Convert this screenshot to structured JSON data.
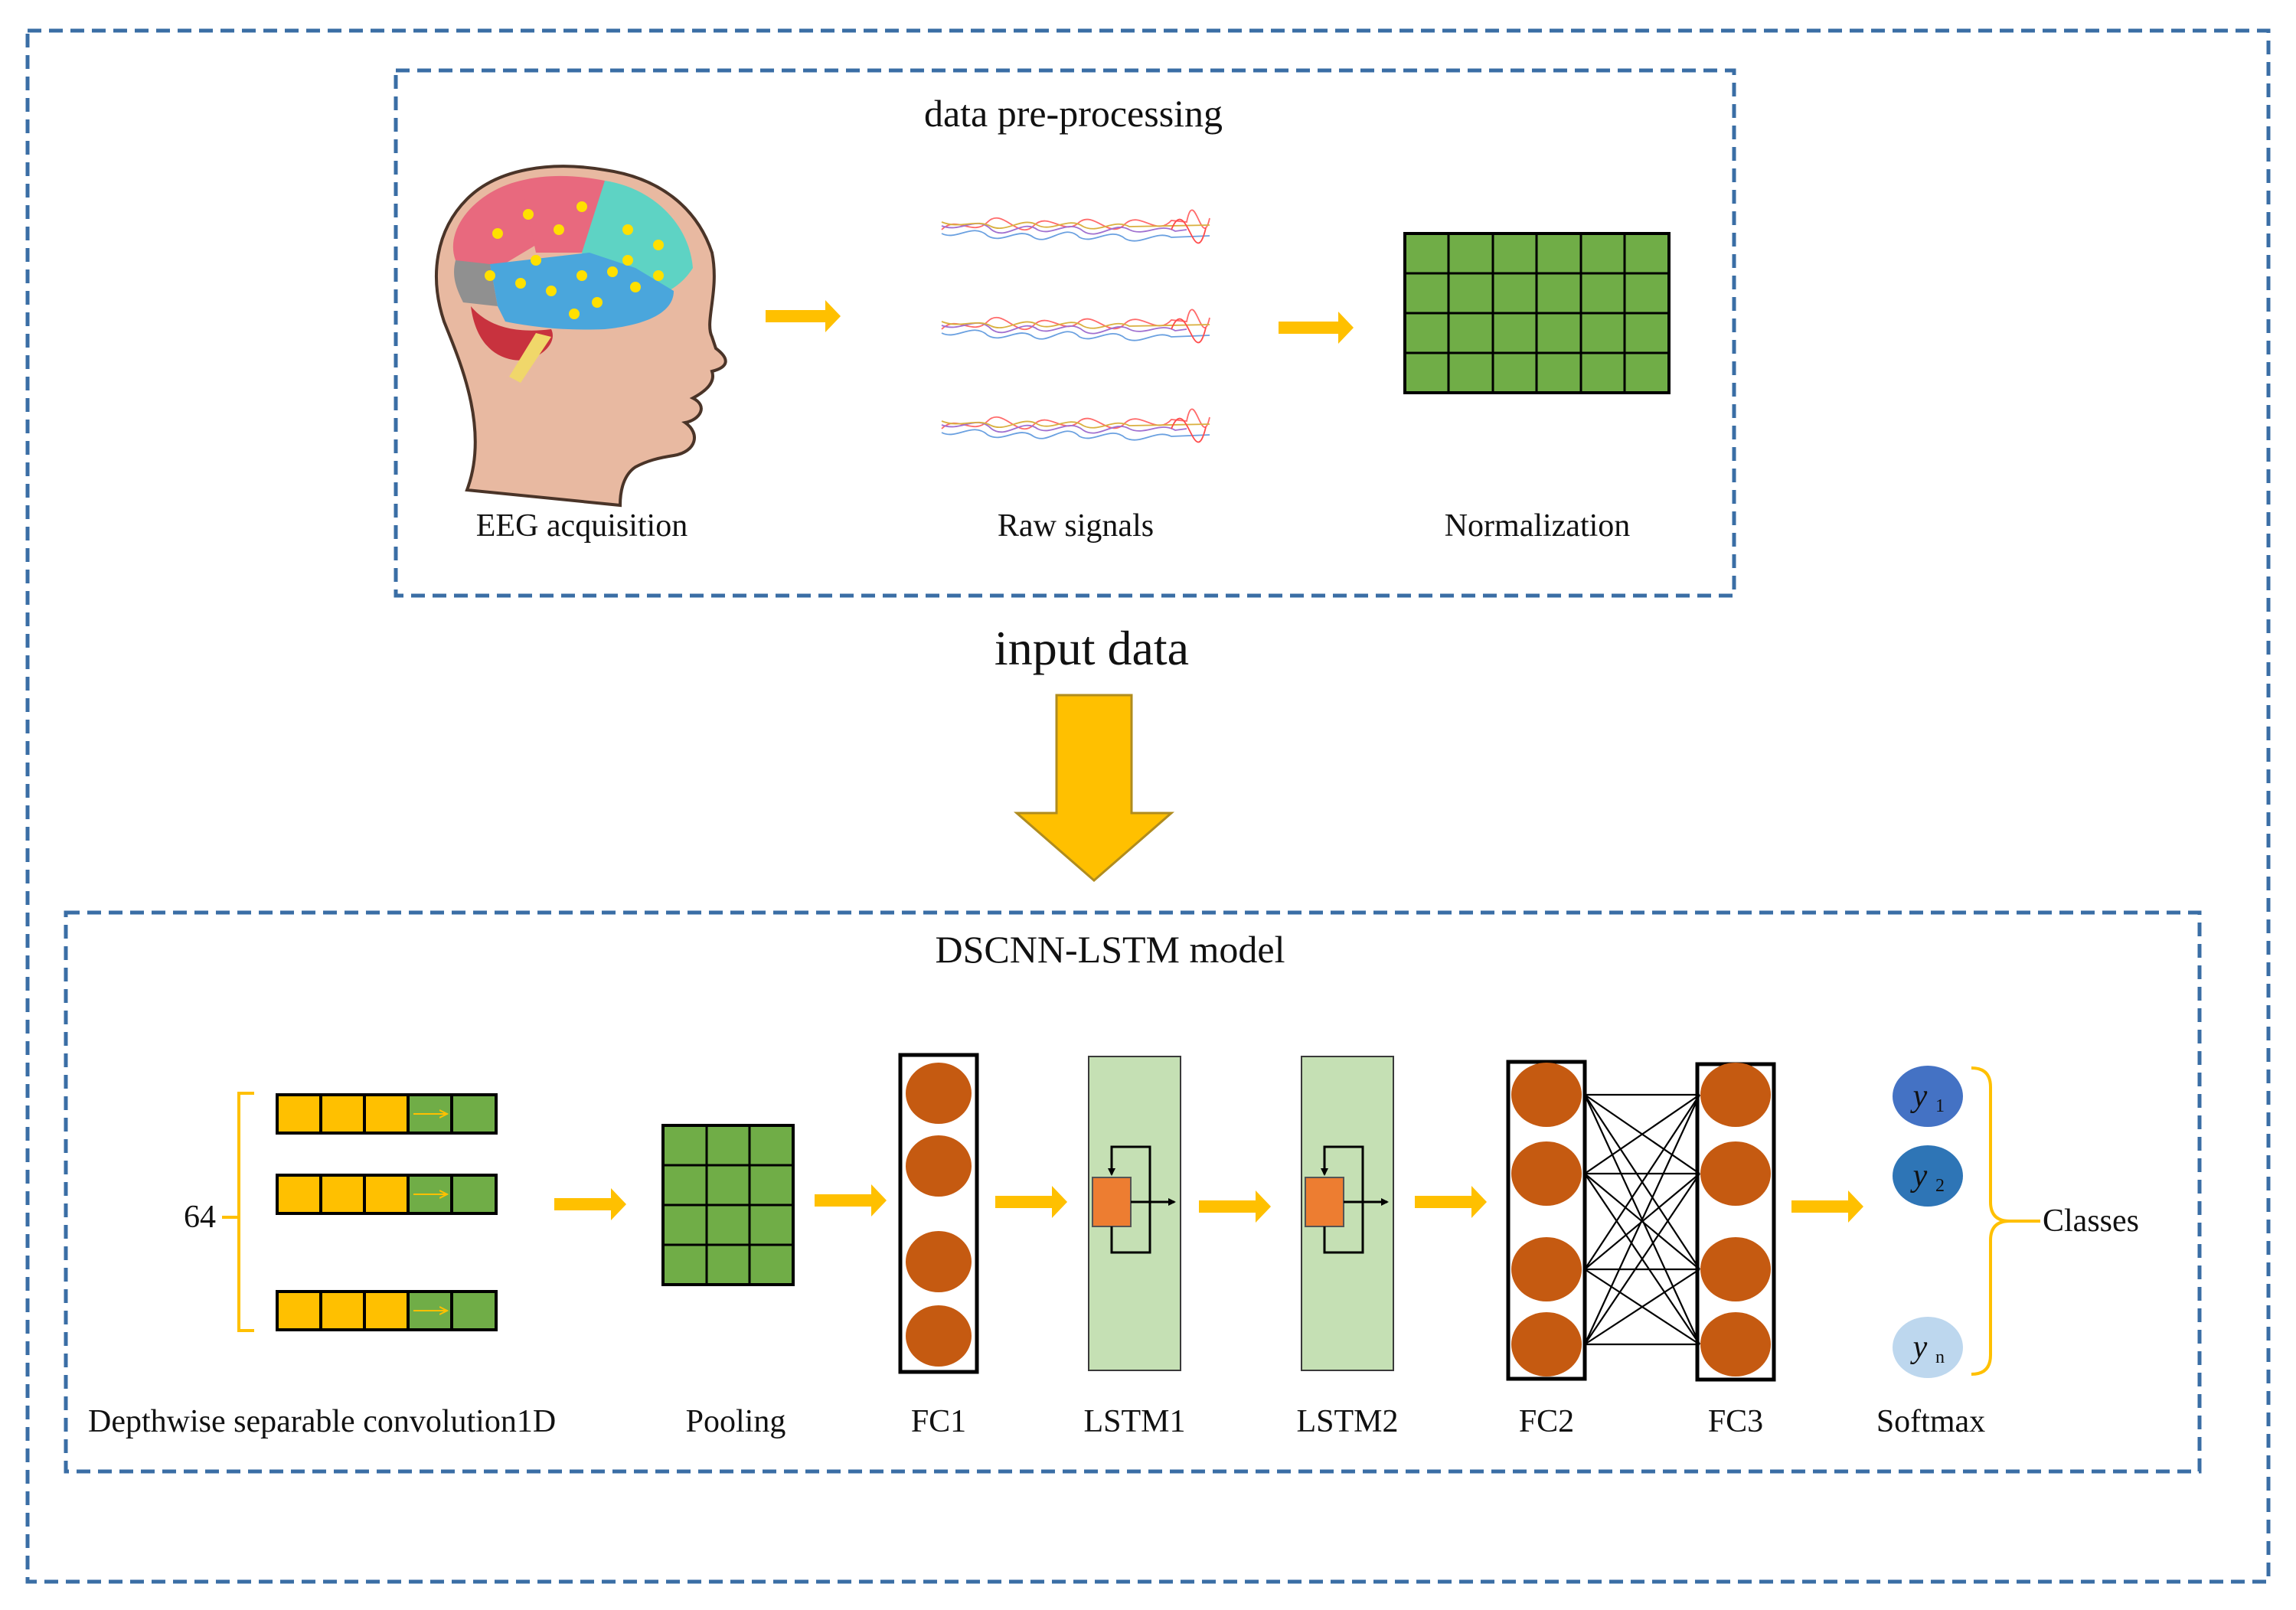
{
  "colors": {
    "frame": "#3a6ea5",
    "arrow": "#ffc000",
    "grid_fill": "#70ad47",
    "neuron": "#c55a11",
    "lstm_fill": "#c5e0b4",
    "lstm_cell": "#ed7d31",
    "softmax_1": "#4472c4",
    "softmax_2": "#2e75b6",
    "softmax_n": "#bdd7ee"
  },
  "preprocessing": {
    "title": "data pre-processing",
    "steps": [
      {
        "label": "EEG acquisition",
        "icon": "brain-head-icon"
      },
      {
        "label": "Raw signals",
        "icon": "eeg-signal-icon"
      },
      {
        "label": "Normalization",
        "icon": "grid-matrix-icon"
      }
    ]
  },
  "transition": {
    "label": "input data"
  },
  "model": {
    "title": "DSCNN-LSTM model",
    "channels_label": "64",
    "layers": [
      {
        "label": "Depthwise separable convolution1D"
      },
      {
        "label": "Pooling"
      },
      {
        "label": "FC1"
      },
      {
        "label": "LSTM1"
      },
      {
        "label": "LSTM2"
      },
      {
        "label": "FC2"
      },
      {
        "label": "FC3"
      },
      {
        "label": "Softmax"
      }
    ],
    "outputs": [
      {
        "symbol": "y",
        "sub": "1"
      },
      {
        "symbol": "y",
        "sub": "2"
      },
      {
        "symbol": "y",
        "sub": "n"
      }
    ],
    "classes_label": "Classes"
  }
}
